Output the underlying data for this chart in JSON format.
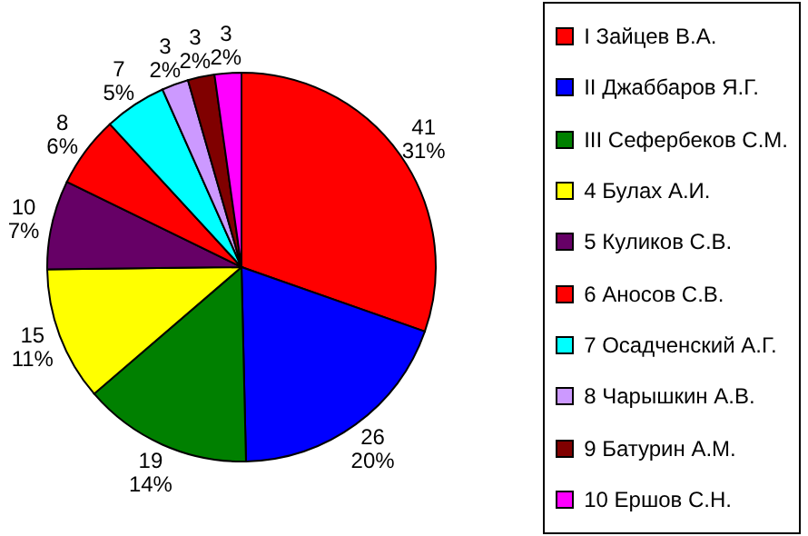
{
  "chart_data": {
    "type": "pie",
    "categories": [
      "I Зайцев В.А.",
      "II Джаббаров Я.Г.",
      "III Сефербеков С.М.",
      "4 Булах А.И.",
      "5 Куликов С.В.",
      "6 Аносов С.В.",
      "7 Осадченский А.Г.",
      "8 Чарышкин А.В.",
      "9 Батурин А.М.",
      "10 Ершов С.Н."
    ],
    "values": [
      41,
      26,
      19,
      15,
      10,
      8,
      7,
      3,
      3,
      3
    ],
    "colors": [
      "#ff0000",
      "#0000ff",
      "#008000",
      "#ffff00",
      "#660066",
      "#ff0000",
      "#00ffff",
      "#cc99ff",
      "#800000",
      "#ff00ff"
    ],
    "value_labels": [
      "41\n31%",
      "26\n20%",
      "19\n14%",
      "15\n11%",
      "10\n7%",
      "8\n6%",
      "7\n5%",
      "3\n2%",
      "3\n2%",
      "3\n2%"
    ],
    "legend": "right"
  }
}
